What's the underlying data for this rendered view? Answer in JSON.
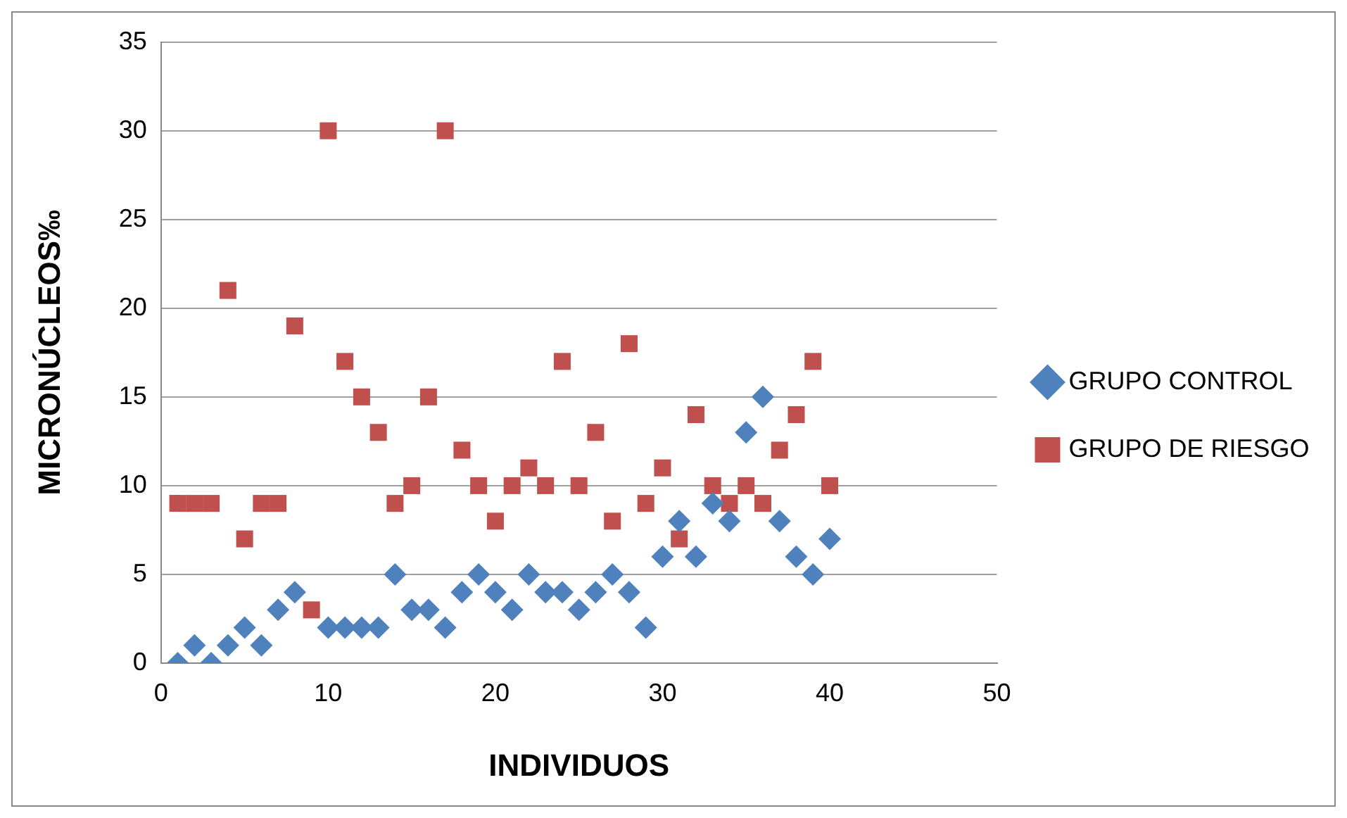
{
  "chart_data": {
    "type": "scatter",
    "xlabel": "INDIVIDUOS",
    "ylabel": "MICRONÚCLEOS‰",
    "xlim": [
      0,
      50
    ],
    "xticks": [
      0,
      10,
      20,
      30,
      40,
      50
    ],
    "ylim": [
      0,
      35
    ],
    "yticks": [
      0,
      5,
      10,
      15,
      20,
      25,
      30,
      35
    ],
    "grid": "y",
    "legend": "right",
    "x": [
      1,
      2,
      3,
      4,
      5,
      6,
      7,
      8,
      9,
      10,
      11,
      12,
      13,
      14,
      15,
      16,
      17,
      18,
      19,
      20,
      21,
      22,
      23,
      24,
      25,
      26,
      27,
      28,
      29,
      30,
      31,
      32,
      33,
      34,
      35,
      36,
      37,
      38,
      39,
      40
    ],
    "series": [
      {
        "name": "GRUPO CONTROL",
        "color": "#4f81bd",
        "marker": "diamond",
        "values": [
          0,
          1,
          0,
          1,
          2,
          1,
          3,
          4,
          null,
          2,
          2,
          2,
          2,
          5,
          3,
          3,
          2,
          4,
          5,
          4,
          3,
          5,
          4,
          4,
          3,
          4,
          5,
          4,
          2,
          6,
          8,
          6,
          9,
          8,
          13,
          15,
          8,
          6,
          5,
          7
        ]
      },
      {
        "name": "GRUPO DE RIESGO",
        "color": "#c0504d",
        "marker": "square",
        "values": [
          9,
          9,
          9,
          21,
          7,
          9,
          9,
          19,
          3,
          30,
          17,
          15,
          13,
          9,
          10,
          15,
          30,
          12,
          10,
          8,
          10,
          11,
          10,
          17,
          10,
          13,
          8,
          18,
          9,
          11,
          7,
          14,
          10,
          9,
          10,
          9,
          12,
          14,
          17,
          10
        ]
      }
    ]
  }
}
